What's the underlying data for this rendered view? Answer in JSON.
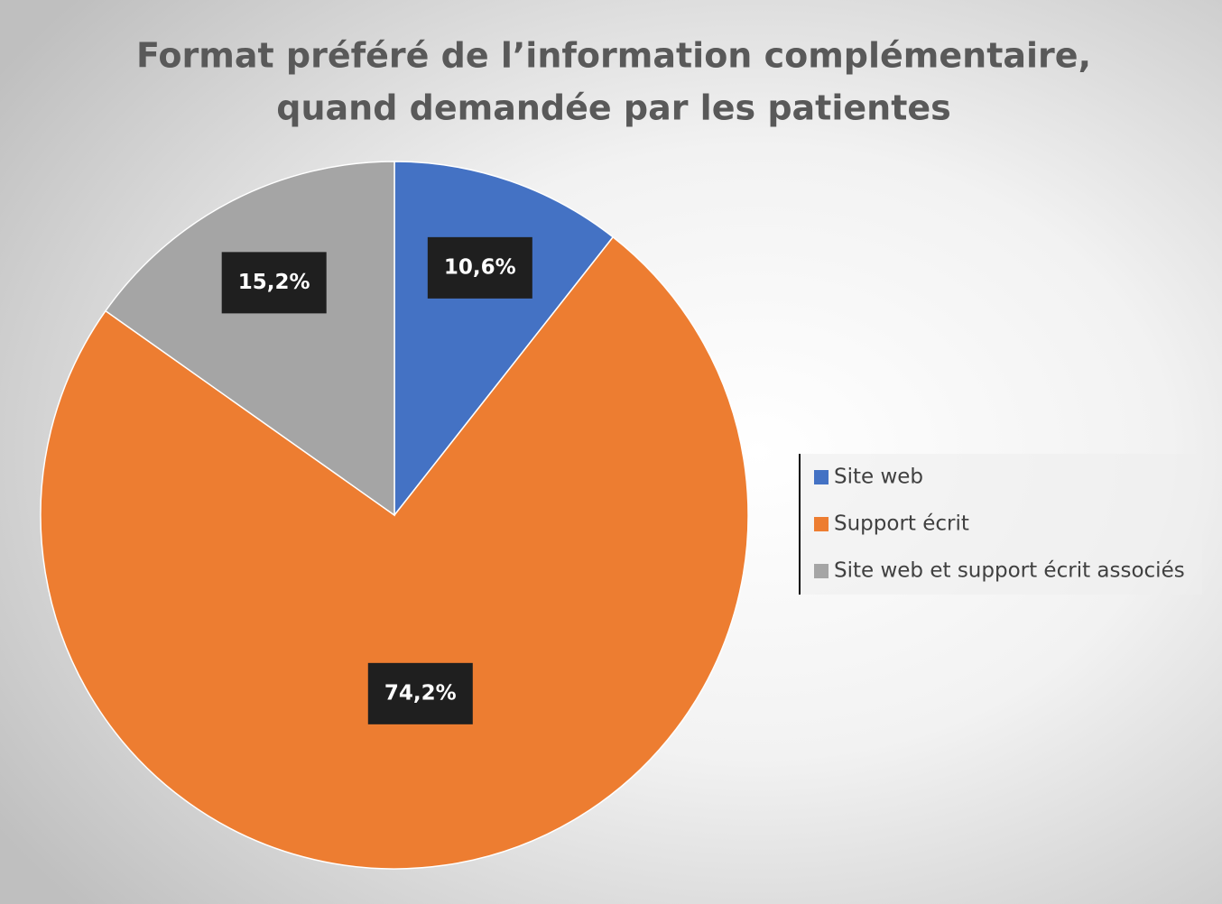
{
  "chart_data": {
    "type": "pie",
    "title": [
      "Format préféré de l’information complémentaire,",
      "quand demandée par les patientes"
    ],
    "categories": [
      "Site web",
      "Support écrit",
      "Site web et support écrit associés"
    ],
    "values": [
      10.6,
      74.2,
      15.2
    ],
    "value_labels": [
      "10,6%",
      "74,2%",
      "15,2%"
    ],
    "colors": [
      "#4472c4",
      "#ed7d31",
      "#a5a5a5"
    ],
    "legend": "right"
  }
}
